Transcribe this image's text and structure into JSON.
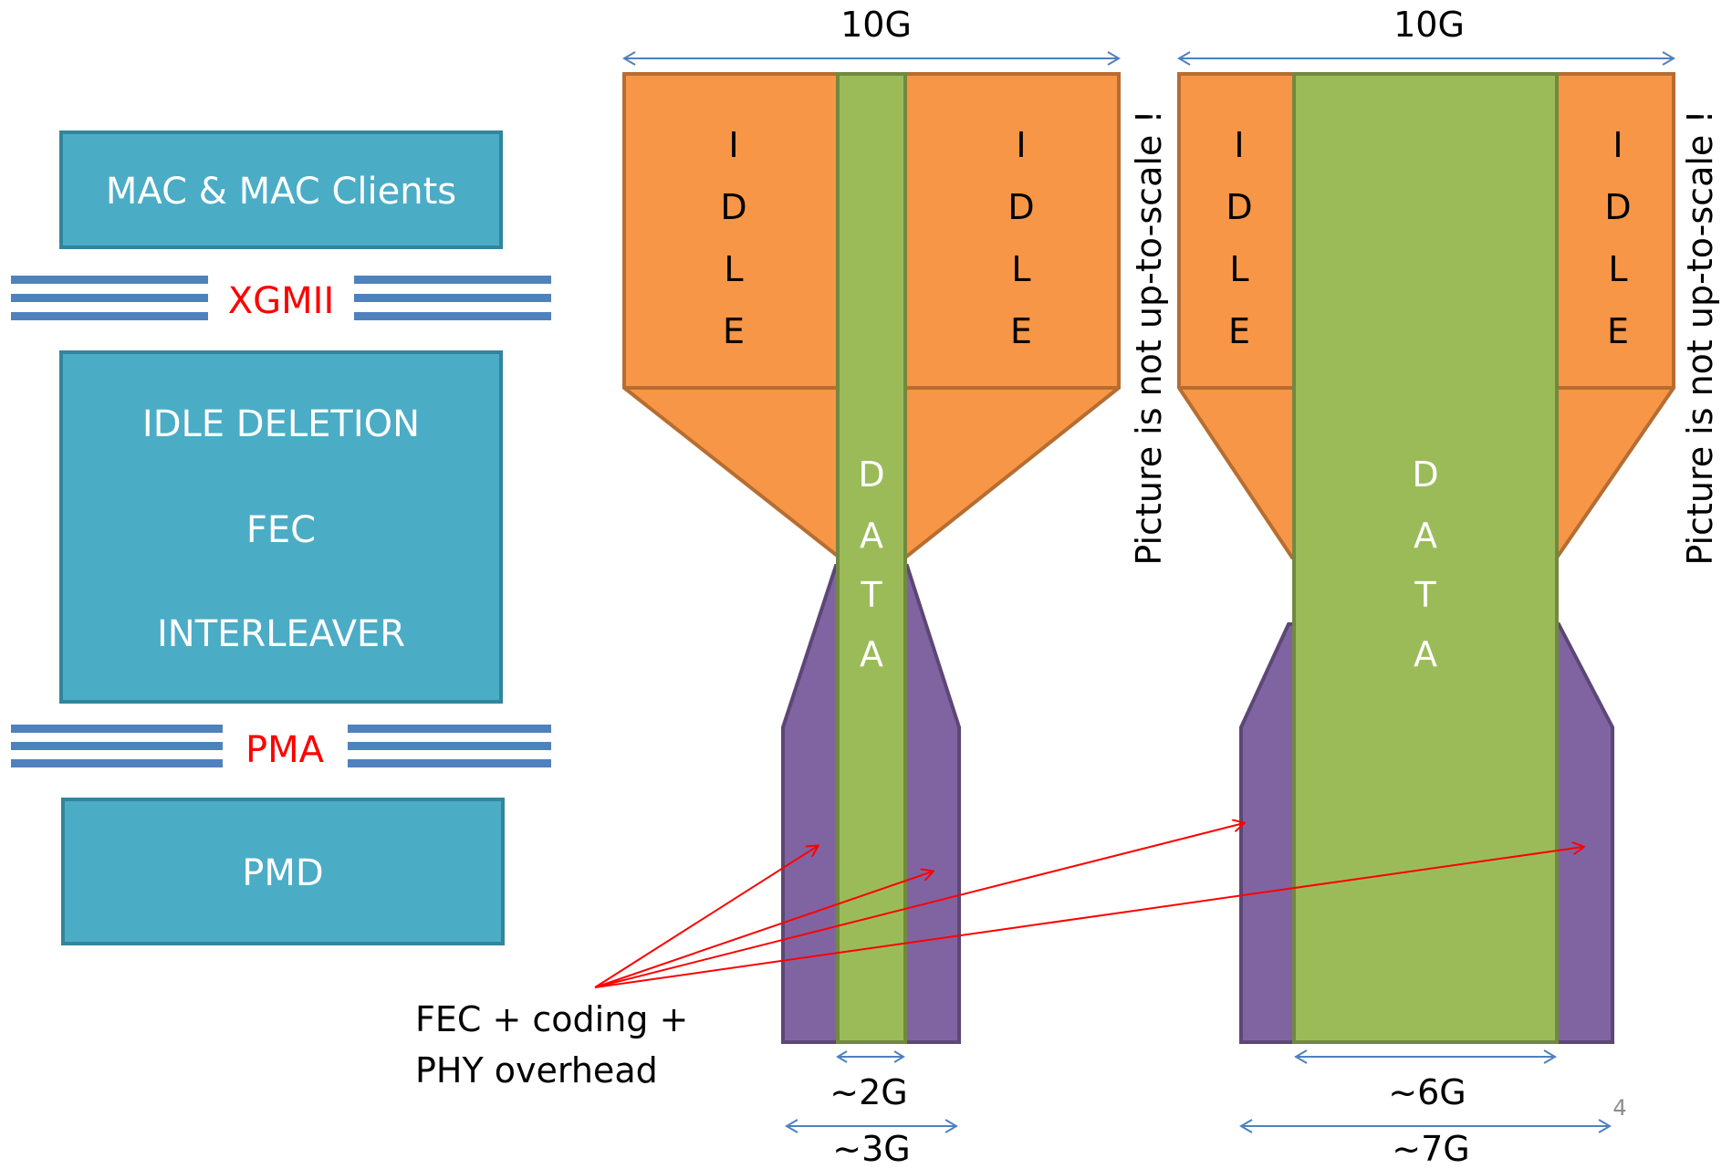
{
  "stack": {
    "mac": "MAC & MAC Clients",
    "xgmii": "XGMII",
    "processing": [
      "IDLE DELETION",
      "FEC",
      "INTERLEAVER"
    ],
    "pma": "PMA",
    "pmd": "PMD"
  },
  "left_funnel": {
    "top_rate": "10G",
    "idle_left": [
      "I",
      "D",
      "L",
      "E"
    ],
    "idle_right": [
      "I",
      "D",
      "L",
      "E"
    ],
    "data": [
      "D",
      "A",
      "T",
      "A"
    ],
    "data_rate": "~2G",
    "line_rate": "~3G",
    "note": "Picture is not up-to-scale !"
  },
  "right_funnel": {
    "top_rate": "10G",
    "idle_left": [
      "I",
      "D",
      "L",
      "E"
    ],
    "idle_right": [
      "I",
      "D",
      "L",
      "E"
    ],
    "data": [
      "D",
      "A",
      "T",
      "A"
    ],
    "data_rate": "~6G",
    "line_rate": "~7G",
    "note": "Picture is not up-to-scale !"
  },
  "overhead_label": [
    "FEC + coding +",
    "PHY overhead"
  ],
  "page_number": "4",
  "colors": {
    "stack_box": "#4bacc6",
    "stack_border": "#31859c",
    "bus_lines": "#4f81bd",
    "bus_label": "#ff0000",
    "idle": "#f79646",
    "idle_border": "#b66d31",
    "data": "#9bbb59",
    "data_border": "#71893f",
    "overhead": "#8064a2",
    "overhead_border": "#5c4776",
    "dimension_arrow": "#4f81bd",
    "pointer_arrow": "#ff0000"
  }
}
